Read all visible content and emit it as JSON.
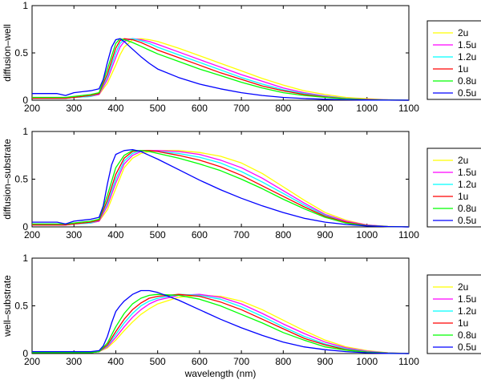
{
  "chart_data": [
    {
      "type": "line",
      "ylabel": "diffusion–well",
      "xlim": [
        200,
        1100
      ],
      "ylim": [
        0,
        1
      ],
      "x_ticks": [
        200,
        300,
        400,
        500,
        600,
        700,
        800,
        900,
        1000,
        1100
      ],
      "y_ticks": [
        0,
        0.5,
        1
      ],
      "grid": false,
      "legend_position": "right",
      "series": [
        {
          "name": "2u",
          "color": "#ffff00",
          "x": [
            200,
            280,
            300,
            340,
            360,
            380,
            400,
            410,
            420,
            440,
            460,
            480,
            500,
            550,
            600,
            650,
            700,
            750,
            800,
            850,
            900,
            950,
            1000,
            1050,
            1100
          ],
          "y": [
            0.02,
            0.02,
            0.03,
            0.04,
            0.06,
            0.18,
            0.37,
            0.48,
            0.56,
            0.64,
            0.65,
            0.64,
            0.62,
            0.55,
            0.47,
            0.39,
            0.31,
            0.23,
            0.16,
            0.1,
            0.06,
            0.03,
            0.015,
            0.005,
            0
          ]
        },
        {
          "name": "1.5u",
          "color": "#ff00ff",
          "x": [
            200,
            280,
            300,
            340,
            360,
            380,
            400,
            410,
            420,
            440,
            460,
            480,
            500,
            550,
            600,
            650,
            700,
            750,
            800,
            850,
            900,
            950,
            1000,
            1050,
            1100
          ],
          "y": [
            0.02,
            0.02,
            0.03,
            0.04,
            0.06,
            0.22,
            0.45,
            0.56,
            0.62,
            0.65,
            0.64,
            0.62,
            0.59,
            0.51,
            0.43,
            0.35,
            0.27,
            0.2,
            0.13,
            0.08,
            0.045,
            0.02,
            0.01,
            0.004,
            0
          ]
        },
        {
          "name": "1.2u",
          "color": "#00ffff",
          "x": [
            200,
            280,
            300,
            340,
            360,
            380,
            400,
            410,
            420,
            440,
            460,
            480,
            500,
            550,
            600,
            650,
            700,
            750,
            800,
            850,
            900,
            950,
            1000,
            1050,
            1100
          ],
          "y": [
            0.02,
            0.02,
            0.03,
            0.04,
            0.07,
            0.25,
            0.5,
            0.6,
            0.64,
            0.65,
            0.63,
            0.6,
            0.56,
            0.48,
            0.4,
            0.32,
            0.24,
            0.17,
            0.11,
            0.07,
            0.04,
            0.02,
            0.008,
            0.003,
            0
          ]
        },
        {
          "name": "1u",
          "color": "#ff0000",
          "x": [
            200,
            280,
            300,
            340,
            360,
            380,
            400,
            410,
            420,
            440,
            460,
            480,
            500,
            550,
            600,
            650,
            700,
            750,
            800,
            850,
            900,
            950,
            1000,
            1050,
            1100
          ],
          "y": [
            0.02,
            0.02,
            0.03,
            0.05,
            0.07,
            0.28,
            0.55,
            0.63,
            0.65,
            0.64,
            0.61,
            0.57,
            0.53,
            0.45,
            0.37,
            0.29,
            0.22,
            0.15,
            0.1,
            0.06,
            0.035,
            0.015,
            0.007,
            0.002,
            0
          ]
        },
        {
          "name": "0.8u",
          "color": "#00ff00",
          "x": [
            200,
            280,
            300,
            340,
            360,
            380,
            400,
            410,
            420,
            440,
            460,
            480,
            500,
            550,
            600,
            650,
            700,
            750,
            800,
            850,
            900,
            950,
            1000,
            1050,
            1100
          ],
          "y": [
            0.03,
            0.03,
            0.04,
            0.06,
            0.08,
            0.33,
            0.6,
            0.65,
            0.64,
            0.61,
            0.57,
            0.53,
            0.49,
            0.41,
            0.33,
            0.26,
            0.19,
            0.13,
            0.08,
            0.05,
            0.03,
            0.013,
            0.005,
            0.002,
            0
          ]
        },
        {
          "name": "0.5u",
          "color": "#0000ff",
          "x": [
            200,
            260,
            280,
            300,
            320,
            340,
            360,
            370,
            380,
            390,
            400,
            410,
            420,
            440,
            460,
            480,
            500,
            550,
            600,
            650,
            700,
            750,
            800,
            850,
            900,
            950,
            1000,
            1050,
            1100
          ],
          "y": [
            0.07,
            0.07,
            0.05,
            0.08,
            0.09,
            0.1,
            0.12,
            0.22,
            0.4,
            0.56,
            0.64,
            0.65,
            0.62,
            0.54,
            0.46,
            0.39,
            0.33,
            0.24,
            0.17,
            0.12,
            0.08,
            0.05,
            0.03,
            0.018,
            0.01,
            0.005,
            0.002,
            0.001,
            0
          ]
        }
      ]
    },
    {
      "type": "line",
      "ylabel": "diffusion–substrate",
      "xlim": [
        200,
        1100
      ],
      "ylim": [
        0,
        1
      ],
      "x_ticks": [
        200,
        300,
        400,
        500,
        600,
        700,
        800,
        900,
        1000,
        1100
      ],
      "y_ticks": [
        0,
        0.5,
        1
      ],
      "grid": false,
      "legend_position": "right",
      "series": [
        {
          "name": "2u",
          "color": "#ffff00",
          "x": [
            200,
            280,
            300,
            340,
            360,
            380,
            400,
            420,
            440,
            460,
            480,
            500,
            550,
            600,
            650,
            700,
            750,
            800,
            850,
            900,
            950,
            1000,
            1050,
            1100
          ],
          "y": [
            0.02,
            0.02,
            0.03,
            0.04,
            0.06,
            0.18,
            0.4,
            0.62,
            0.72,
            0.77,
            0.79,
            0.8,
            0.8,
            0.78,
            0.74,
            0.67,
            0.56,
            0.42,
            0.28,
            0.15,
            0.07,
            0.02,
            0.005,
            0
          ]
        },
        {
          "name": "1.5u",
          "color": "#ff00ff",
          "x": [
            200,
            280,
            300,
            340,
            360,
            380,
            400,
            420,
            440,
            460,
            480,
            500,
            550,
            600,
            650,
            700,
            750,
            800,
            850,
            900,
            950,
            1000,
            1050,
            1100
          ],
          "y": [
            0.02,
            0.02,
            0.03,
            0.04,
            0.06,
            0.22,
            0.46,
            0.66,
            0.75,
            0.79,
            0.8,
            0.8,
            0.79,
            0.76,
            0.7,
            0.62,
            0.51,
            0.38,
            0.25,
            0.13,
            0.06,
            0.02,
            0.004,
            0
          ]
        },
        {
          "name": "1.2u",
          "color": "#00ffff",
          "x": [
            200,
            280,
            300,
            340,
            360,
            380,
            400,
            420,
            440,
            460,
            480,
            500,
            550,
            600,
            650,
            700,
            750,
            800,
            850,
            900,
            950,
            1000,
            1050,
            1100
          ],
          "y": [
            0.02,
            0.02,
            0.03,
            0.04,
            0.07,
            0.25,
            0.5,
            0.69,
            0.77,
            0.8,
            0.8,
            0.79,
            0.77,
            0.73,
            0.67,
            0.58,
            0.47,
            0.35,
            0.23,
            0.12,
            0.05,
            0.015,
            0.004,
            0
          ]
        },
        {
          "name": "1u",
          "color": "#ff0000",
          "x": [
            200,
            280,
            300,
            340,
            360,
            380,
            400,
            420,
            440,
            460,
            480,
            500,
            550,
            600,
            650,
            700,
            750,
            800,
            850,
            900,
            950,
            1000,
            1050,
            1100
          ],
          "y": [
            0.02,
            0.02,
            0.03,
            0.05,
            0.07,
            0.28,
            0.55,
            0.72,
            0.79,
            0.8,
            0.8,
            0.79,
            0.75,
            0.7,
            0.63,
            0.54,
            0.43,
            0.32,
            0.21,
            0.11,
            0.05,
            0.014,
            0.003,
            0
          ]
        },
        {
          "name": "0.8u",
          "color": "#00ff00",
          "x": [
            200,
            280,
            300,
            340,
            360,
            380,
            400,
            420,
            440,
            460,
            480,
            500,
            550,
            600,
            650,
            700,
            750,
            800,
            850,
            900,
            950,
            1000,
            1050,
            1100
          ],
          "y": [
            0.03,
            0.03,
            0.04,
            0.06,
            0.08,
            0.33,
            0.62,
            0.75,
            0.8,
            0.8,
            0.79,
            0.77,
            0.72,
            0.66,
            0.59,
            0.5,
            0.4,
            0.29,
            0.19,
            0.1,
            0.04,
            0.012,
            0.003,
            0
          ]
        },
        {
          "name": "0.5u",
          "color": "#0000ff",
          "x": [
            200,
            260,
            280,
            300,
            320,
            340,
            360,
            370,
            380,
            390,
            400,
            410,
            420,
            440,
            460,
            480,
            500,
            550,
            600,
            650,
            700,
            750,
            800,
            850,
            900,
            950,
            1000,
            1050,
            1100
          ],
          "y": [
            0.05,
            0.05,
            0.03,
            0.06,
            0.07,
            0.08,
            0.1,
            0.22,
            0.45,
            0.65,
            0.76,
            0.78,
            0.8,
            0.81,
            0.79,
            0.75,
            0.71,
            0.6,
            0.49,
            0.39,
            0.3,
            0.22,
            0.15,
            0.09,
            0.05,
            0.025,
            0.01,
            0.003,
            0
          ]
        }
      ]
    },
    {
      "type": "line",
      "ylabel": "well–substrate",
      "xlabel": "wavelength (nm)",
      "xlim": [
        200,
        1100
      ],
      "ylim": [
        0,
        1
      ],
      "x_ticks": [
        200,
        300,
        400,
        500,
        600,
        700,
        800,
        900,
        1000,
        1100
      ],
      "y_ticks": [
        0,
        0.5,
        1
      ],
      "grid": false,
      "legend_position": "right",
      "series": [
        {
          "name": "2u",
          "color": "#ffff00",
          "x": [
            200,
            340,
            360,
            380,
            400,
            420,
            440,
            460,
            480,
            500,
            550,
            600,
            650,
            700,
            750,
            800,
            850,
            900,
            950,
            1000,
            1050,
            1100
          ],
          "y": [
            0.01,
            0.01,
            0.02,
            0.06,
            0.14,
            0.24,
            0.33,
            0.41,
            0.47,
            0.52,
            0.59,
            0.61,
            0.6,
            0.55,
            0.46,
            0.35,
            0.24,
            0.14,
            0.07,
            0.03,
            0.008,
            0
          ]
        },
        {
          "name": "1.5u",
          "color": "#ff00ff",
          "x": [
            200,
            340,
            360,
            380,
            400,
            420,
            440,
            460,
            480,
            500,
            550,
            600,
            650,
            700,
            750,
            800,
            850,
            900,
            950,
            1000,
            1050,
            1100
          ],
          "y": [
            0.01,
            0.01,
            0.02,
            0.07,
            0.17,
            0.28,
            0.38,
            0.46,
            0.52,
            0.56,
            0.61,
            0.62,
            0.59,
            0.52,
            0.42,
            0.31,
            0.21,
            0.12,
            0.06,
            0.025,
            0.007,
            0
          ]
        },
        {
          "name": "1.2u",
          "color": "#00ffff",
          "x": [
            200,
            340,
            360,
            380,
            400,
            420,
            440,
            460,
            480,
            500,
            550,
            600,
            650,
            700,
            750,
            800,
            850,
            900,
            950,
            1000,
            1050,
            1100
          ],
          "y": [
            0.01,
            0.01,
            0.02,
            0.08,
            0.2,
            0.32,
            0.42,
            0.5,
            0.55,
            0.58,
            0.62,
            0.61,
            0.57,
            0.49,
            0.39,
            0.28,
            0.18,
            0.1,
            0.05,
            0.02,
            0.006,
            0
          ]
        },
        {
          "name": "1u",
          "color": "#ff0000",
          "x": [
            200,
            340,
            360,
            380,
            400,
            420,
            440,
            460,
            480,
            500,
            550,
            600,
            650,
            700,
            750,
            800,
            850,
            900,
            950,
            1000,
            1050,
            1100
          ],
          "y": [
            0.01,
            0.01,
            0.02,
            0.09,
            0.23,
            0.36,
            0.46,
            0.53,
            0.58,
            0.6,
            0.62,
            0.6,
            0.54,
            0.46,
            0.36,
            0.26,
            0.16,
            0.09,
            0.04,
            0.017,
            0.005,
            0
          ]
        },
        {
          "name": "0.8u",
          "color": "#00ff00",
          "x": [
            200,
            340,
            360,
            380,
            400,
            420,
            440,
            460,
            480,
            500,
            550,
            600,
            650,
            700,
            750,
            800,
            850,
            900,
            950,
            1000,
            1050,
            1100
          ],
          "y": [
            0.01,
            0.01,
            0.02,
            0.11,
            0.28,
            0.42,
            0.52,
            0.58,
            0.61,
            0.62,
            0.61,
            0.57,
            0.5,
            0.41,
            0.32,
            0.22,
            0.14,
            0.07,
            0.035,
            0.014,
            0.004,
            0
          ]
        },
        {
          "name": "0.5u",
          "color": "#0000ff",
          "x": [
            200,
            300,
            340,
            360,
            370,
            380,
            390,
            400,
            410,
            420,
            440,
            460,
            480,
            500,
            550,
            600,
            650,
            700,
            750,
            800,
            850,
            900,
            950,
            1000,
            1050,
            1100
          ],
          "y": [
            0.02,
            0.02,
            0.02,
            0.03,
            0.08,
            0.18,
            0.32,
            0.44,
            0.5,
            0.55,
            0.62,
            0.66,
            0.66,
            0.64,
            0.56,
            0.46,
            0.36,
            0.27,
            0.19,
            0.12,
            0.07,
            0.04,
            0.02,
            0.008,
            0.002,
            0
          ]
        }
      ]
    }
  ]
}
